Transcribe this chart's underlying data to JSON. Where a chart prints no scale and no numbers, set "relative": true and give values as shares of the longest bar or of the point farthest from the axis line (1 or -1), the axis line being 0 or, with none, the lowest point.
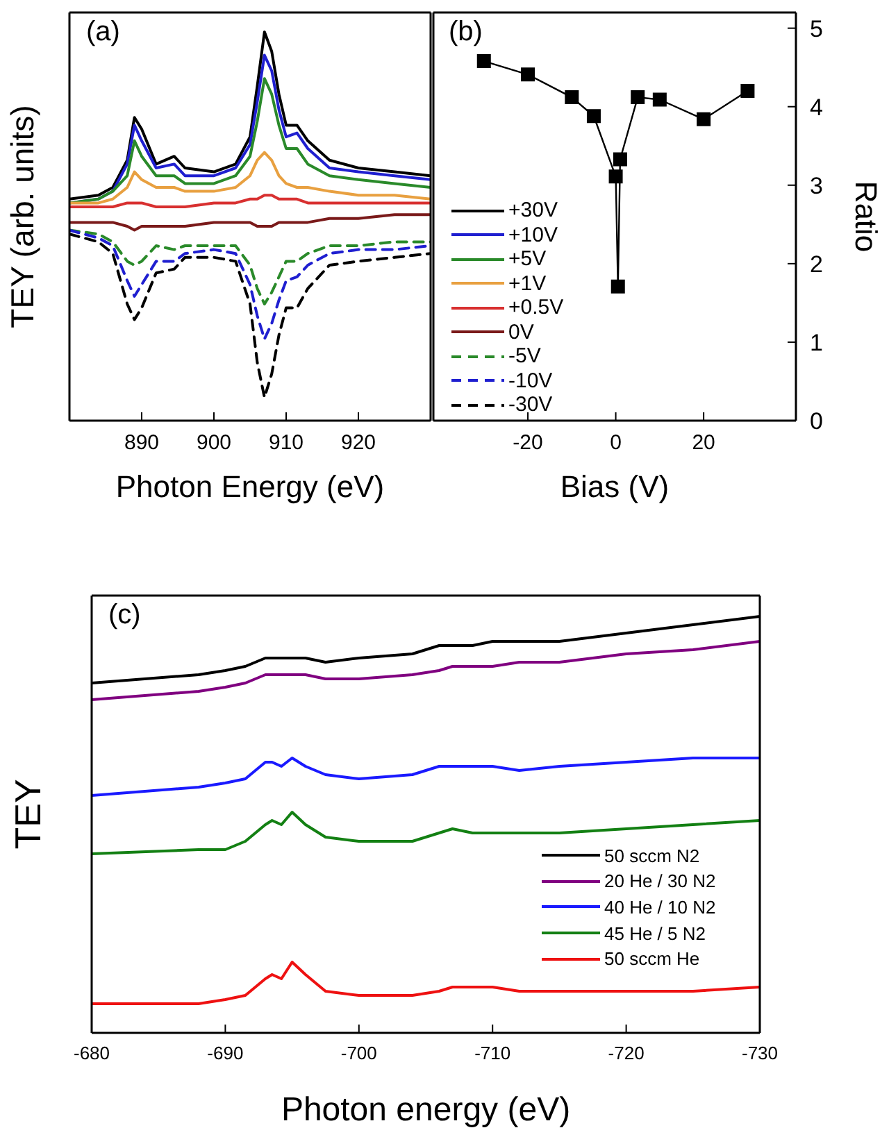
{
  "chart_data": [
    {
      "type": "line",
      "xlabel": "Photon Energy (eV)",
      "ylabel": "TEY (arb. units)",
      "annotations": [
        "(a)"
      ],
      "relative": true,
      "tick_labels": "x",
      "legend": "right",
      "xlim": [
        880,
        930
      ],
      "xticks": [
        890,
        900,
        910,
        920
      ],
      "x": [
        880,
        884,
        886,
        888,
        889,
        890,
        892,
        894.5,
        896,
        900,
        903,
        905,
        906,
        907,
        908,
        909,
        910,
        911.5,
        913,
        916,
        920,
        925,
        930
      ],
      "series": [
        {
          "name": "+30V",
          "color": "#000000",
          "values": [
            0.57,
            0.58,
            0.6,
            0.67,
            0.78,
            0.75,
            0.66,
            0.68,
            0.65,
            0.64,
            0.66,
            0.73,
            0.86,
            1.0,
            0.95,
            0.84,
            0.76,
            0.76,
            0.72,
            0.67,
            0.65,
            0.64,
            0.63
          ]
        },
        {
          "name": "+10V",
          "color": "#1f1fd0",
          "values": [
            0.56,
            0.57,
            0.59,
            0.66,
            0.76,
            0.72,
            0.65,
            0.66,
            0.63,
            0.63,
            0.65,
            0.71,
            0.82,
            0.94,
            0.9,
            0.8,
            0.73,
            0.74,
            0.7,
            0.65,
            0.64,
            0.63,
            0.62
          ]
        },
        {
          "name": "+5V",
          "color": "#2a8a2a",
          "values": [
            0.56,
            0.57,
            0.59,
            0.63,
            0.72,
            0.68,
            0.63,
            0.63,
            0.61,
            0.61,
            0.63,
            0.68,
            0.77,
            0.88,
            0.84,
            0.76,
            0.7,
            0.7,
            0.66,
            0.63,
            0.62,
            0.61,
            0.6
          ]
        },
        {
          "name": "+1V",
          "color": "#e8a040",
          "values": [
            0.56,
            0.56,
            0.57,
            0.6,
            0.64,
            0.62,
            0.6,
            0.6,
            0.59,
            0.59,
            0.6,
            0.63,
            0.67,
            0.69,
            0.67,
            0.63,
            0.61,
            0.6,
            0.6,
            0.59,
            0.58,
            0.58,
            0.57
          ]
        },
        {
          "name": "+0.5V",
          "color": "#d83030",
          "values": [
            0.55,
            0.55,
            0.55,
            0.56,
            0.56,
            0.56,
            0.55,
            0.55,
            0.55,
            0.56,
            0.56,
            0.57,
            0.57,
            0.58,
            0.58,
            0.57,
            0.57,
            0.57,
            0.56,
            0.56,
            0.56,
            0.56,
            0.56
          ]
        },
        {
          "name": "0V",
          "color": "#7a1a1a",
          "values": [
            0.51,
            0.51,
            0.51,
            0.5,
            0.49,
            0.5,
            0.5,
            0.5,
            0.5,
            0.51,
            0.51,
            0.51,
            0.5,
            0.5,
            0.5,
            0.51,
            0.51,
            0.51,
            0.51,
            0.52,
            0.52,
            0.53,
            0.53
          ]
        },
        {
          "name": "-5V",
          "color": "#2a8a2a",
          "line_style": "dashed",
          "values": [
            0.49,
            0.48,
            0.46,
            0.41,
            0.4,
            0.41,
            0.45,
            0.44,
            0.45,
            0.45,
            0.45,
            0.4,
            0.34,
            0.3,
            0.33,
            0.37,
            0.41,
            0.41,
            0.43,
            0.45,
            0.45,
            0.46,
            0.46
          ]
        },
        {
          "name": "-10V",
          "color": "#1f1fd0",
          "line_style": "dashed",
          "values": [
            0.49,
            0.47,
            0.45,
            0.36,
            0.32,
            0.35,
            0.41,
            0.41,
            0.43,
            0.44,
            0.43,
            0.35,
            0.27,
            0.21,
            0.25,
            0.31,
            0.36,
            0.37,
            0.4,
            0.43,
            0.44,
            0.44,
            0.45
          ]
        },
        {
          "name": "-30V",
          "color": "#000000",
          "line_style": "dashed",
          "values": [
            0.48,
            0.46,
            0.43,
            0.3,
            0.26,
            0.29,
            0.38,
            0.39,
            0.42,
            0.42,
            0.41,
            0.3,
            0.15,
            0.06,
            0.12,
            0.22,
            0.29,
            0.29,
            0.34,
            0.4,
            0.41,
            0.42,
            0.43
          ]
        }
      ]
    },
    {
      "type": "line",
      "xlabel": "Bias (V)",
      "y2label": "Ratio",
      "annotations": [
        "(b)"
      ],
      "marker": "square",
      "xlim": [
        -41.5,
        41
      ],
      "xticks": [
        -20,
        0,
        20
      ],
      "y2lim": [
        0,
        5.2
      ],
      "y2ticks": [
        0,
        1,
        2,
        3,
        4,
        5
      ],
      "x": [
        -30,
        -20,
        -10,
        -5,
        0,
        0.5,
        1,
        5,
        10,
        20,
        30
      ],
      "series": [
        {
          "axis": "y2",
          "color": "#000000",
          "values": [
            4.58,
            4.41,
            4.12,
            3.88,
            3.11,
            1.71,
            3.33,
            4.12,
            4.09,
            3.84,
            4.2
          ]
        }
      ]
    },
    {
      "type": "line",
      "xlabel": "Photon energy (eV)",
      "ylabel": "TEY",
      "annotations": [
        "(c)"
      ],
      "relative": true,
      "tick_labels": "x",
      "legend": "bottom right",
      "xlim": [
        -680,
        -730
      ],
      "xticks": [
        -680,
        -690,
        -700,
        -710,
        -720,
        -730
      ],
      "x": [
        -680,
        -688,
        -690,
        -691.5,
        -693,
        -693.5,
        -694.2,
        -695,
        -696,
        -697.5,
        -700,
        -704,
        -706,
        -707,
        -708.5,
        -710,
        -712,
        -715,
        -720,
        -725,
        -730
      ],
      "series": [
        {
          "name": "50 sccm N2",
          "color": "#000000",
          "values": [
            0.84,
            0.86,
            0.87,
            0.88,
            0.9,
            0.9,
            0.9,
            0.9,
            0.9,
            0.89,
            0.9,
            0.91,
            0.93,
            0.93,
            0.93,
            0.94,
            0.94,
            0.94,
            0.96,
            0.98,
            1.0
          ]
        },
        {
          "name": "20 He / 30 N2",
          "color": "#800080",
          "values": [
            0.8,
            0.82,
            0.83,
            0.84,
            0.86,
            0.86,
            0.86,
            0.86,
            0.86,
            0.85,
            0.85,
            0.86,
            0.87,
            0.88,
            0.88,
            0.88,
            0.89,
            0.89,
            0.91,
            0.92,
            0.94
          ]
        },
        {
          "name": "40 He / 10 N2",
          "color": "#1a1aff",
          "values": [
            0.57,
            0.59,
            0.6,
            0.61,
            0.65,
            0.65,
            0.64,
            0.66,
            0.64,
            0.62,
            0.61,
            0.62,
            0.64,
            0.64,
            0.64,
            0.64,
            0.63,
            0.64,
            0.65,
            0.66,
            0.66
          ]
        },
        {
          "name": "45 He / 5 N2",
          "color": "#138013",
          "values": [
            0.43,
            0.44,
            0.44,
            0.46,
            0.5,
            0.51,
            0.5,
            0.53,
            0.5,
            0.47,
            0.46,
            0.46,
            0.48,
            0.49,
            0.48,
            0.48,
            0.48,
            0.48,
            0.49,
            0.5,
            0.51
          ]
        },
        {
          "name": "50 sccm He",
          "color": "#ee1111",
          "values": [
            0.07,
            0.07,
            0.08,
            0.09,
            0.13,
            0.14,
            0.13,
            0.17,
            0.14,
            0.1,
            0.09,
            0.09,
            0.1,
            0.11,
            0.11,
            0.11,
            0.1,
            0.1,
            0.1,
            0.1,
            0.11
          ]
        }
      ]
    }
  ]
}
